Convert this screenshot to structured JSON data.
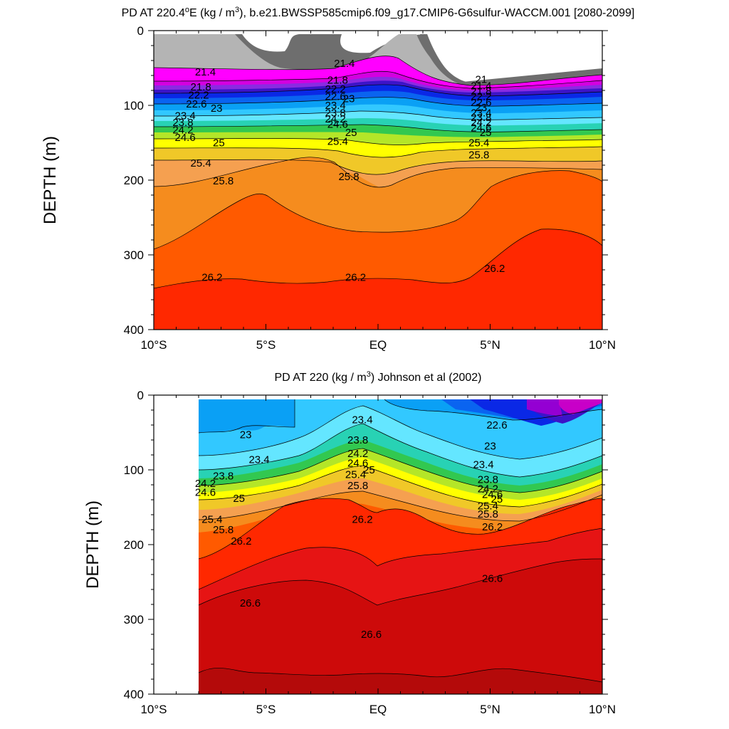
{
  "chart_data": [
    {
      "type": "contour",
      "title_parts": [
        "PD AT 220.4",
        "o",
        "E (kg / m",
        "3",
        "), b.e21.BWSSP585cmip6.f09_g17.CMIP6-G6sulfur-WACCM.001 [2080-2099]"
      ],
      "ylabel": "DEPTH (m)",
      "x_ticks": [
        "10°S",
        "5°S",
        "EQ",
        "5°N",
        "10°N"
      ],
      "y_ticks": [
        "0",
        "100",
        "200",
        "300",
        "400"
      ],
      "xlim": [
        -10,
        10
      ],
      "ylim": [
        400,
        0
      ],
      "contour_labels": [
        {
          "t": "21.4",
          "x": -7.7,
          "d": 55
        },
        {
          "t": "21.8",
          "x": -7.9,
          "d": 75
        },
        {
          "t": "22.2",
          "x": -8.0,
          "d": 86
        },
        {
          "t": "22.6",
          "x": -8.1,
          "d": 98
        },
        {
          "t": "23",
          "x": -7.2,
          "d": 104
        },
        {
          "t": "23.4",
          "x": -8.6,
          "d": 114
        },
        {
          "t": "23.8",
          "x": -8.7,
          "d": 123
        },
        {
          "t": "24.2",
          "x": -8.7,
          "d": 133
        },
        {
          "t": "24.6",
          "x": -8.6,
          "d": 143
        },
        {
          "t": "25",
          "x": -7.1,
          "d": 150
        },
        {
          "t": "25.4",
          "x": -7.9,
          "d": 177
        },
        {
          "t": "25.8",
          "x": -6.9,
          "d": 201
        },
        {
          "t": "26.2",
          "x": -7.4,
          "d": 330
        },
        {
          "t": "21.4",
          "x": -1.5,
          "d": 44
        },
        {
          "t": "21.8",
          "x": -1.8,
          "d": 66
        },
        {
          "t": "22.2",
          "x": -1.9,
          "d": 78
        },
        {
          "t": "22.6",
          "x": -1.9,
          "d": 88
        },
        {
          "t": "23",
          "x": -1.3,
          "d": 91
        },
        {
          "t": "23.4",
          "x": -1.9,
          "d": 100
        },
        {
          "t": "23.8",
          "x": -1.9,
          "d": 110
        },
        {
          "t": "24.2",
          "x": -1.9,
          "d": 118
        },
        {
          "t": "24.6",
          "x": -1.8,
          "d": 125
        },
        {
          "t": "25",
          "x": -1.2,
          "d": 136
        },
        {
          "t": "25.4",
          "x": -1.8,
          "d": 148
        },
        {
          "t": "25.8",
          "x": -1.3,
          "d": 195
        },
        {
          "t": "26.2",
          "x": -1.0,
          "d": 330
        },
        {
          "t": "21",
          "x": 4.6,
          "d": 65
        },
        {
          "t": "21.4",
          "x": 4.6,
          "d": 74
        },
        {
          "t": "21.8",
          "x": 4.6,
          "d": 81
        },
        {
          "t": "22.2",
          "x": 4.6,
          "d": 88
        },
        {
          "t": "22.6",
          "x": 4.6,
          "d": 96
        },
        {
          "t": "23",
          "x": 4.6,
          "d": 103
        },
        {
          "t": "23.4",
          "x": 4.6,
          "d": 110
        },
        {
          "t": "23.8",
          "x": 4.6,
          "d": 116
        },
        {
          "t": "24.2",
          "x": 4.6,
          "d": 123
        },
        {
          "t": "24.6",
          "x": 4.6,
          "d": 130
        },
        {
          "t": "25",
          "x": 4.8,
          "d": 136
        },
        {
          "t": "25.4",
          "x": 4.5,
          "d": 150
        },
        {
          "t": "25.8",
          "x": 4.5,
          "d": 166
        },
        {
          "t": "26.2",
          "x": 5.2,
          "d": 318
        }
      ],
      "contour_levels": [
        21,
        21.4,
        21.8,
        22.2,
        22.6,
        23,
        23.4,
        23.8,
        24.2,
        24.6,
        25,
        25.4,
        25.8,
        26.2
      ],
      "colors": [
        "#5f5f5f",
        "#b4b4b4",
        "#ff00ff",
        "#d400e0",
        "#8a2be2",
        "#3c14c8",
        "#0a28e6",
        "#0a64f0",
        "#0aa0f5",
        "#32c8ff",
        "#64e6ff",
        "#28d2b4",
        "#32c850",
        "#b4e628",
        "#ffff00",
        "#f0c828",
        "#f5a050",
        "#f58c1e",
        "#ff5a00",
        "#ff2800"
      ]
    },
    {
      "type": "contour",
      "title_parts": [
        "PD AT 220 (kg / m",
        "3",
        ") Johnson et al (2002)"
      ],
      "ylabel": "DEPTH (m)",
      "x_ticks": [
        "10°S",
        "5°S",
        "EQ",
        "5°N",
        "10°N"
      ],
      "y_ticks": [
        "0",
        "100",
        "200",
        "300",
        "400"
      ],
      "xlim": [
        -10,
        10
      ],
      "ylim": [
        400,
        0
      ],
      "data_x_start": -8,
      "contour_labels": [
        {
          "t": "23",
          "x": -5.9,
          "d": 53
        },
        {
          "t": "23.4",
          "x": -5.3,
          "d": 86
        },
        {
          "t": "23.8",
          "x": -6.9,
          "d": 108
        },
        {
          "t": "24.2",
          "x": -7.7,
          "d": 118
        },
        {
          "t": "24.6",
          "x": -7.7,
          "d": 130
        },
        {
          "t": "25",
          "x": -6.2,
          "d": 138
        },
        {
          "t": "25.4",
          "x": -7.4,
          "d": 166
        },
        {
          "t": "25.8",
          "x": -6.9,
          "d": 180
        },
        {
          "t": "26.2",
          "x": -6.1,
          "d": 195
        },
        {
          "t": "26.6",
          "x": -5.7,
          "d": 278
        },
        {
          "t": "23.4",
          "x": -0.7,
          "d": 33
        },
        {
          "t": "23.8",
          "x": -0.9,
          "d": 60
        },
        {
          "t": "24.2",
          "x": -0.9,
          "d": 78
        },
        {
          "t": "24.6",
          "x": -0.9,
          "d": 91
        },
        {
          "t": "25",
          "x": -0.4,
          "d": 100
        },
        {
          "t": "25.4",
          "x": -1.0,
          "d": 106
        },
        {
          "t": "25.8",
          "x": -0.9,
          "d": 121
        },
        {
          "t": "26.2",
          "x": -0.7,
          "d": 166
        },
        {
          "t": "26.6",
          "x": -0.3,
          "d": 320
        },
        {
          "t": "22.6",
          "x": 5.3,
          "d": 40
        },
        {
          "t": "23",
          "x": 5.0,
          "d": 68
        },
        {
          "t": "23.4",
          "x": 4.7,
          "d": 93
        },
        {
          "t": "23.8",
          "x": 4.9,
          "d": 113
        },
        {
          "t": "24.2",
          "x": 4.9,
          "d": 125
        },
        {
          "t": "24.6",
          "x": 5.1,
          "d": 133
        },
        {
          "t": "25",
          "x": 5.3,
          "d": 139
        },
        {
          "t": "25.4",
          "x": 4.9,
          "d": 148
        },
        {
          "t": "25.8",
          "x": 4.9,
          "d": 159
        },
        {
          "t": "26.2",
          "x": 5.1,
          "d": 176
        },
        {
          "t": "26.6",
          "x": 5.1,
          "d": 245
        }
      ],
      "contour_levels": [
        22.6,
        23,
        23.4,
        23.8,
        24.2,
        24.6,
        25,
        25.4,
        25.8,
        26.2,
        26.6
      ],
      "colors": [
        "#9400d3",
        "#c800c8",
        "#0a28e6",
        "#0a64f0",
        "#0aa0f5",
        "#32c8ff",
        "#64e6ff",
        "#28d2b4",
        "#32c850",
        "#b4e628",
        "#ffff00",
        "#f0c828",
        "#f5a050",
        "#f58c1e",
        "#ff5a00",
        "#ff2800",
        "#e61414",
        "#cd0a0a",
        "#b40a0a"
      ]
    }
  ]
}
